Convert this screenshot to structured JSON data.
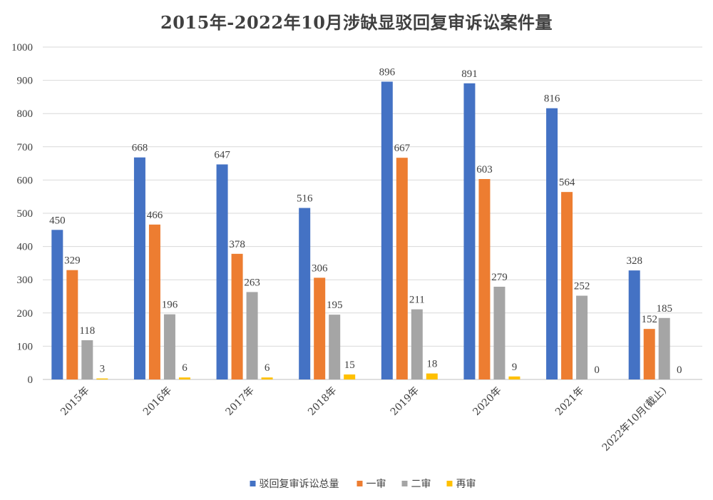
{
  "chart_data": {
    "type": "bar",
    "title": "2015年-2022年10月涉缺显驳回复审诉讼案件量",
    "categories": [
      "2015年",
      "2016年",
      "2017年",
      "2018年",
      "2019年",
      "2020年",
      "2021年",
      "2022年10月(截止)"
    ],
    "series": [
      {
        "name": "驳回复审诉讼总量",
        "color": "#4472C4",
        "values": [
          450,
          668,
          647,
          516,
          896,
          891,
          816,
          328
        ]
      },
      {
        "name": "一审",
        "color": "#ED7D31",
        "values": [
          329,
          466,
          378,
          306,
          667,
          603,
          564,
          152
        ]
      },
      {
        "name": "二审",
        "color": "#A5A5A5",
        "values": [
          118,
          196,
          263,
          195,
          211,
          279,
          252,
          185
        ]
      },
      {
        "name": "再审",
        "color": "#FFC000",
        "values": [
          3,
          6,
          6,
          15,
          18,
          9,
          0,
          0
        ]
      }
    ],
    "ylim": [
      0,
      1000
    ],
    "yticks": [
      0,
      100,
      200,
      300,
      400,
      500,
      600,
      700,
      800,
      900,
      1000
    ],
    "grid": true,
    "legend": "bottom",
    "data_labels": true
  }
}
